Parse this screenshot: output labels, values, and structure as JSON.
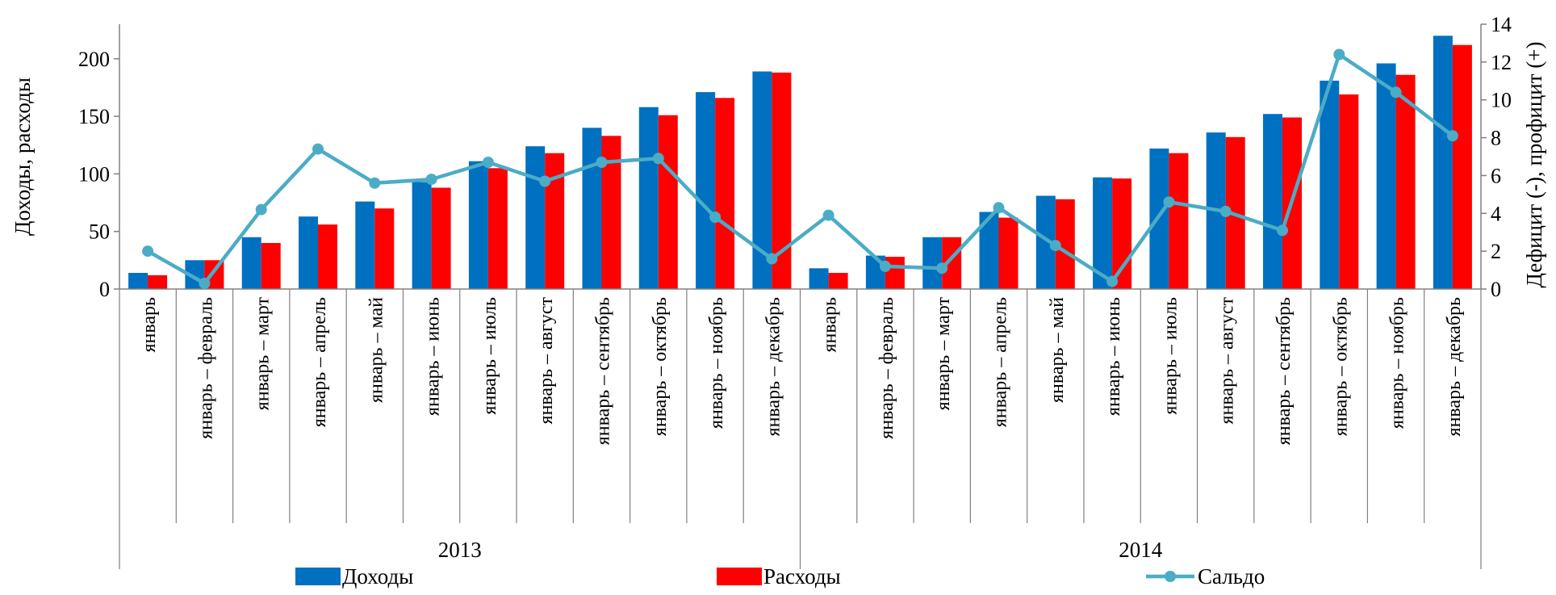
{
  "chart_data": {
    "type": "bar",
    "categories": [
      "январь",
      "январь – февраль",
      "январь – март",
      "январь – апрель",
      "январь – май",
      "январь – июнь",
      "январь – июль",
      "январь – август",
      "январь – сентябрь",
      "январь – октябрь",
      "январь – ноябрь",
      "январь – декабрь",
      "январь",
      "январь – февраль",
      "январь – март",
      "январь – апрель",
      "январь – май",
      "январь – июнь",
      "январь – июль",
      "январь – август",
      "январь – сентябрь",
      "январь – октябрь",
      "январь – ноябрь",
      "январь – декабрь"
    ],
    "groups": [
      {
        "label": "2013",
        "start": 0,
        "end": 11
      },
      {
        "label": "2014",
        "start": 12,
        "end": 23
      }
    ],
    "series": [
      {
        "name": "Доходы",
        "type": "bar",
        "axis": "left",
        "color": "#0070C0",
        "values": [
          14,
          25,
          45,
          63,
          76,
          93,
          111,
          124,
          140,
          158,
          171,
          189,
          18,
          29,
          45,
          67,
          81,
          97,
          122,
          136,
          152,
          181,
          196,
          220
        ]
      },
      {
        "name": "Расходы",
        "type": "bar",
        "axis": "left",
        "color": "#FF0000",
        "values": [
          12,
          25,
          40,
          56,
          70,
          88,
          105,
          118,
          133,
          151,
          166,
          188,
          14,
          28,
          45,
          62,
          78,
          96,
          118,
          132,
          149,
          169,
          186,
          212
        ]
      },
      {
        "name": "Сальдо",
        "type": "line",
        "axis": "right",
        "color": "#4BACC6",
        "values": [
          2.0,
          0.3,
          4.2,
          7.4,
          5.6,
          5.8,
          6.7,
          5.7,
          6.7,
          6.9,
          3.8,
          1.6,
          3.9,
          1.2,
          1.1,
          4.3,
          2.3,
          0.4,
          4.6,
          4.1,
          3.1,
          12.4,
          10.4,
          8.1
        ]
      }
    ],
    "y_left": {
      "label": "Доходы, расходы",
      "min": 0,
      "max": 230,
      "ticks": [
        0,
        50,
        100,
        150,
        200
      ]
    },
    "y_right": {
      "label": "Дефицит (-), профицит (+)",
      "min": 0,
      "max": 14,
      "ticks": [
        0,
        2,
        4,
        6,
        8,
        10,
        12,
        14
      ]
    },
    "legend_position": "bottom",
    "grid": false
  }
}
